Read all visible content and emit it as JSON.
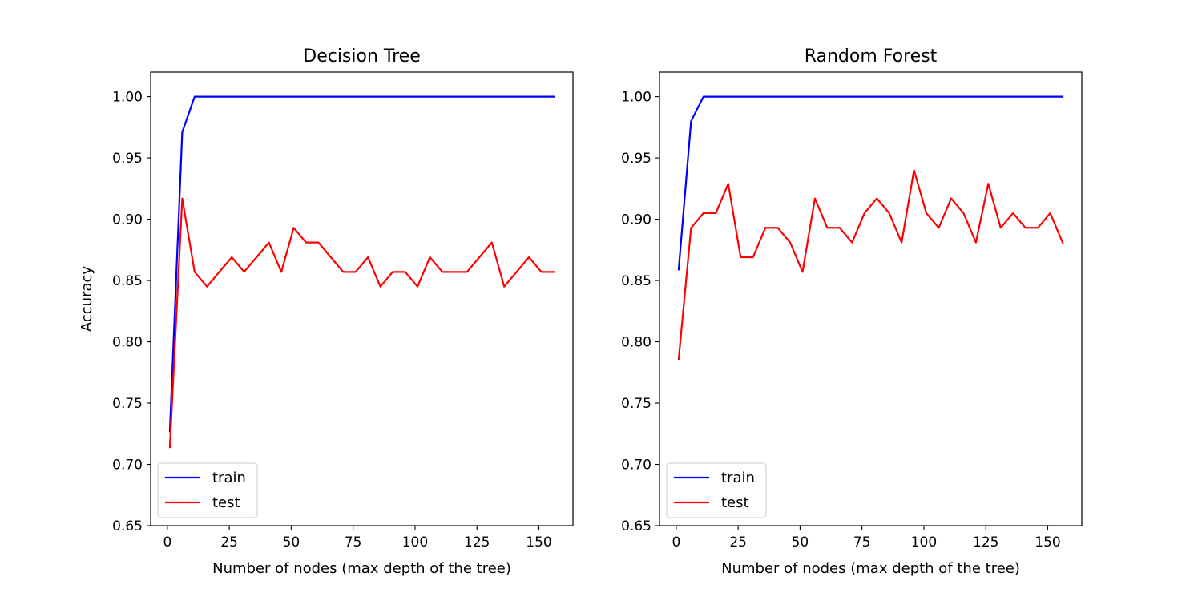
{
  "chart_data": [
    {
      "type": "line",
      "title": "Decision Tree",
      "xlabel": "Number of nodes (max depth of the tree)",
      "ylabel": "Accuracy",
      "xlim": [
        -6.75,
        163.75
      ],
      "ylim": [
        0.65,
        1.02
      ],
      "xticks": [
        0,
        25,
        50,
        75,
        100,
        125,
        150
      ],
      "xtick_labels": [
        "0",
        "25",
        "50",
        "75",
        "100",
        "125",
        "150"
      ],
      "yticks": [
        0.65,
        0.7,
        0.75,
        0.8,
        0.85,
        0.9,
        0.95,
        1.0
      ],
      "ytick_labels": [
        "0.65",
        "0.70",
        "0.75",
        "0.80",
        "0.85",
        "0.90",
        "0.95",
        "1.00"
      ],
      "grid": false,
      "legend_position": "lower-left",
      "x": [
        1,
        6,
        11,
        16,
        21,
        26,
        31,
        36,
        41,
        46,
        51,
        56,
        61,
        66,
        71,
        76,
        81,
        86,
        91,
        96,
        101,
        106,
        111,
        116,
        121,
        126,
        131,
        136,
        141,
        146,
        151,
        156
      ],
      "series": [
        {
          "name": "train",
          "color": "#0000ff",
          "values": [
            0.727,
            0.971,
            1.0,
            1.0,
            1.0,
            1.0,
            1.0,
            1.0,
            1.0,
            1.0,
            1.0,
            1.0,
            1.0,
            1.0,
            1.0,
            1.0,
            1.0,
            1.0,
            1.0,
            1.0,
            1.0,
            1.0,
            1.0,
            1.0,
            1.0,
            1.0,
            1.0,
            1.0,
            1.0,
            1.0,
            1.0,
            1.0
          ]
        },
        {
          "name": "test",
          "color": "#ff0000",
          "values": [
            0.714,
            0.917,
            0.857,
            0.845,
            0.857,
            0.869,
            0.857,
            0.869,
            0.881,
            0.857,
            0.893,
            0.881,
            0.881,
            0.869,
            0.857,
            0.857,
            0.869,
            0.845,
            0.857,
            0.857,
            0.845,
            0.869,
            0.857,
            0.857,
            0.857,
            0.869,
            0.881,
            0.845,
            0.857,
            0.869,
            0.857,
            0.857
          ]
        }
      ]
    },
    {
      "type": "line",
      "title": "Random Forest",
      "xlabel": "Number of nodes (max depth of the tree)",
      "ylabel": "",
      "xlim": [
        -6.75,
        163.75
      ],
      "ylim": [
        0.65,
        1.02
      ],
      "xticks": [
        0,
        25,
        50,
        75,
        100,
        125,
        150
      ],
      "xtick_labels": [
        "0",
        "25",
        "50",
        "75",
        "100",
        "125",
        "150"
      ],
      "yticks": [
        0.65,
        0.7,
        0.75,
        0.8,
        0.85,
        0.9,
        0.95,
        1.0
      ],
      "ytick_labels": [
        "0.65",
        "0.70",
        "0.75",
        "0.80",
        "0.85",
        "0.90",
        "0.95",
        "1.00"
      ],
      "grid": false,
      "legend_position": "lower-left",
      "x": [
        1,
        6,
        11,
        16,
        21,
        26,
        31,
        36,
        41,
        46,
        51,
        56,
        61,
        66,
        71,
        76,
        81,
        86,
        91,
        96,
        101,
        106,
        111,
        116,
        121,
        126,
        131,
        136,
        141,
        146,
        151,
        156
      ],
      "series": [
        {
          "name": "train",
          "color": "#0000ff",
          "values": [
            0.859,
            0.98,
            1.0,
            1.0,
            1.0,
            1.0,
            1.0,
            1.0,
            1.0,
            1.0,
            1.0,
            1.0,
            1.0,
            1.0,
            1.0,
            1.0,
            1.0,
            1.0,
            1.0,
            1.0,
            1.0,
            1.0,
            1.0,
            1.0,
            1.0,
            1.0,
            1.0,
            1.0,
            1.0,
            1.0,
            1.0,
            1.0
          ]
        },
        {
          "name": "test",
          "color": "#ff0000",
          "values": [
            0.786,
            0.893,
            0.905,
            0.905,
            0.929,
            0.869,
            0.869,
            0.893,
            0.893,
            0.881,
            0.857,
            0.917,
            0.893,
            0.893,
            0.881,
            0.905,
            0.917,
            0.905,
            0.881,
            0.94,
            0.905,
            0.893,
            0.917,
            0.905,
            0.881,
            0.929,
            0.893,
            0.905,
            0.893,
            0.893,
            0.905,
            0.881
          ]
        }
      ]
    }
  ]
}
